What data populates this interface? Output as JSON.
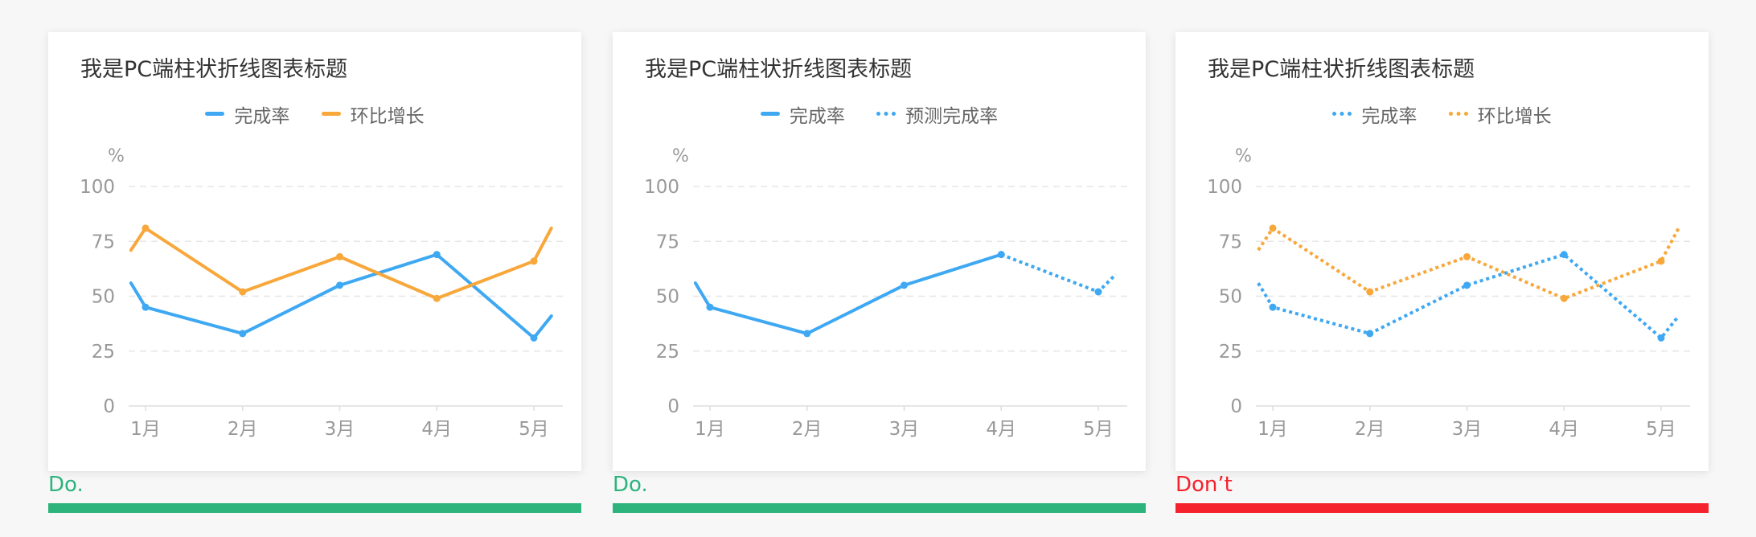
{
  "panels": [
    {
      "title": "我是PC端柱状折线图表标题",
      "legend": [
        {
          "label": "完成率",
          "color": "#3ea8f2",
          "style": "solid"
        },
        {
          "label": "环比增长",
          "color": "#f8a73a",
          "style": "solid"
        }
      ],
      "verdict": "Do.",
      "verdict_color": "#2db47d"
    },
    {
      "title": "我是PC端柱状折线图表标题",
      "legend": [
        {
          "label": "完成率",
          "color": "#3ea8f2",
          "style": "solid"
        },
        {
          "label": "预测完成率",
          "color": "#3ea8f2",
          "style": "dotted"
        }
      ],
      "verdict": "Do.",
      "verdict_color": "#2db47d"
    },
    {
      "title": "我是PC端柱状折线图表标题",
      "legend": [
        {
          "label": "完成率",
          "color": "#3ea8f2",
          "style": "dotted"
        },
        {
          "label": "环比增长",
          "color": "#f8a73a",
          "style": "dotted"
        }
      ],
      "verdict": "Don’t",
      "verdict_color": "#f5222d"
    }
  ],
  "chart_data": [
    {
      "type": "line",
      "title": "我是PC端柱状折线图表标题",
      "ylabel": "%",
      "ylim": [
        0,
        100
      ],
      "yticks": [
        0,
        25,
        50,
        75,
        100
      ],
      "categories": [
        "1月",
        "2月",
        "3月",
        "4月",
        "5月"
      ],
      "grid": true,
      "series": [
        {
          "name": "完成率",
          "color": "#3ea8f2",
          "style": "solid",
          "points": [
            [
              0.85,
              56
            ],
            [
              1,
              45
            ],
            [
              2,
              33
            ],
            [
              3,
              55
            ],
            [
              4,
              69
            ],
            [
              5,
              31
            ],
            [
              5.18,
              41
            ]
          ]
        },
        {
          "name": "环比增长",
          "color": "#f8a73a",
          "style": "solid",
          "points": [
            [
              0.85,
              71
            ],
            [
              1,
              81
            ],
            [
              2,
              52
            ],
            [
              3,
              68
            ],
            [
              4,
              49
            ],
            [
              5,
              66
            ],
            [
              5.18,
              81
            ]
          ]
        }
      ]
    },
    {
      "type": "line",
      "title": "我是PC端柱状折线图表标题",
      "ylabel": "%",
      "ylim": [
        0,
        100
      ],
      "yticks": [
        0,
        25,
        50,
        75,
        100
      ],
      "categories": [
        "1月",
        "2月",
        "3月",
        "4月",
        "5月"
      ],
      "grid": true,
      "series": [
        {
          "name": "完成率",
          "color": "#3ea8f2",
          "style": "solid",
          "points": [
            [
              0.85,
              56
            ],
            [
              1,
              45
            ],
            [
              2,
              33
            ],
            [
              3,
              55
            ],
            [
              4,
              69
            ]
          ]
        },
        {
          "name": "预测完成率",
          "color": "#3ea8f2",
          "style": "dotted",
          "points": [
            [
              4,
              69
            ],
            [
              5,
              52
            ],
            [
              5.18,
              60
            ]
          ]
        }
      ]
    },
    {
      "type": "line",
      "title": "我是PC端柱状折线图表标题",
      "ylabel": "%",
      "ylim": [
        0,
        100
      ],
      "yticks": [
        0,
        25,
        50,
        75,
        100
      ],
      "categories": [
        "1月",
        "2月",
        "3月",
        "4月",
        "5月"
      ],
      "grid": true,
      "series": [
        {
          "name": "完成率",
          "color": "#3ea8f2",
          "style": "dotted",
          "points": [
            [
              0.85,
              56
            ],
            [
              1,
              45
            ],
            [
              2,
              33
            ],
            [
              3,
              55
            ],
            [
              4,
              69
            ],
            [
              5,
              31
            ],
            [
              5.18,
              41
            ]
          ]
        },
        {
          "name": "环比增长",
          "color": "#f8a73a",
          "style": "dotted",
          "points": [
            [
              0.85,
              71
            ],
            [
              1,
              81
            ],
            [
              2,
              52
            ],
            [
              3,
              68
            ],
            [
              4,
              49
            ],
            [
              5,
              66
            ],
            [
              5.18,
              81
            ]
          ]
        }
      ]
    }
  ]
}
